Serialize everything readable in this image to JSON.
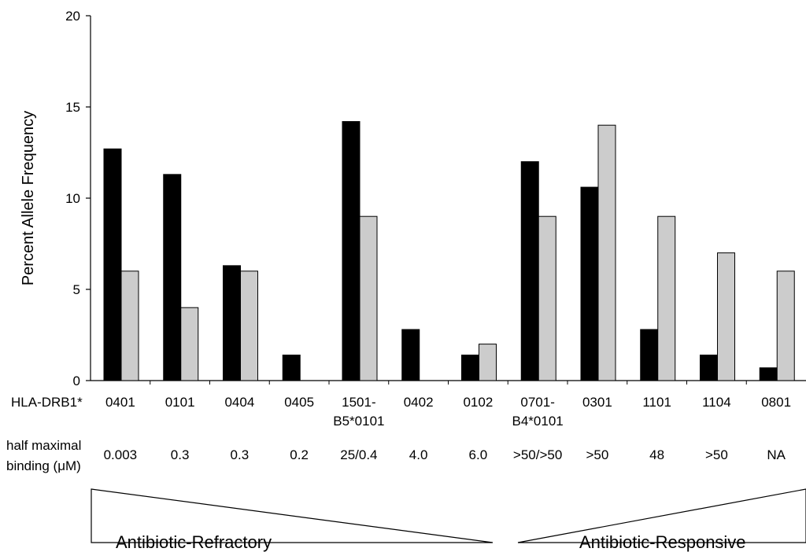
{
  "chart_data": {
    "type": "bar",
    "title": "",
    "xlabel": "",
    "ylabel": "Percent Allele Frequency",
    "ylim": [
      0,
      20
    ],
    "yticks": [
      0,
      5,
      10,
      15,
      20
    ],
    "grid": false,
    "row_label_allele": "HLA-DRB1*",
    "row_label_binding_line1": "half maximal",
    "row_label_binding_line2": "binding (μM)",
    "categories": [
      [
        "0401"
      ],
      [
        "0101"
      ],
      [
        "0404"
      ],
      [
        "0405"
      ],
      [
        "1501-",
        "B5*0101"
      ],
      [
        "0402"
      ],
      [
        "0102"
      ],
      [
        "0701-",
        "B4*0101"
      ],
      [
        "0301"
      ],
      [
        "1101"
      ],
      [
        "1104"
      ],
      [
        "0801"
      ]
    ],
    "binding": [
      "0.003",
      "0.3",
      "0.3",
      "0.2",
      "25/0.4",
      "4.0",
      "6.0",
      ">50/>50",
      ">50",
      "48",
      ">50",
      "NA"
    ],
    "series": [
      {
        "color": "#000000",
        "values": [
          12.7,
          11.3,
          6.3,
          1.4,
          14.2,
          2.8,
          1.4,
          12.0,
          10.6,
          2.8,
          1.4,
          0.7
        ]
      },
      {
        "color": "#cccccc",
        "values": [
          6.0,
          4.0,
          6.0,
          0.0,
          9.0,
          0.0,
          2.0,
          9.0,
          14.0,
          9.0,
          7.0,
          6.0
        ]
      }
    ],
    "regions": [
      "Antibiotic-Refractory",
      "Antibiotic-Responsive"
    ]
  }
}
